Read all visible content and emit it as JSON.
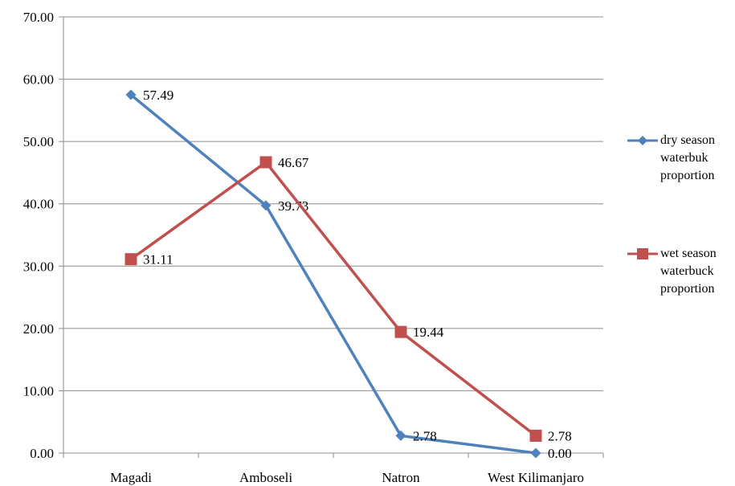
{
  "chart_data": {
    "type": "line",
    "categories": [
      "Magadi",
      "Amboseli",
      "Natron",
      "West Kilimanjaro"
    ],
    "ylim": [
      0,
      70
    ],
    "yticks": [
      "0.00",
      "10.00",
      "20.00",
      "30.00",
      "40.00",
      "50.00",
      "60.00",
      "70.00"
    ],
    "grid": true,
    "legend_position": "right",
    "series": [
      {
        "name": "dry season waterbuk proportion",
        "values": [
          57.49,
          39.73,
          2.78,
          0.0
        ],
        "labels": [
          "57.49",
          "39.73",
          "2.78",
          "0.00"
        ],
        "color": "#4F81BD",
        "marker": "diamond"
      },
      {
        "name": "wet season waterbuck proportion",
        "values": [
          31.11,
          46.67,
          19.44,
          2.78
        ],
        "labels": [
          "31.11",
          "46.67",
          "19.44",
          "2.78"
        ],
        "color": "#C0504D",
        "marker": "square"
      }
    ]
  }
}
